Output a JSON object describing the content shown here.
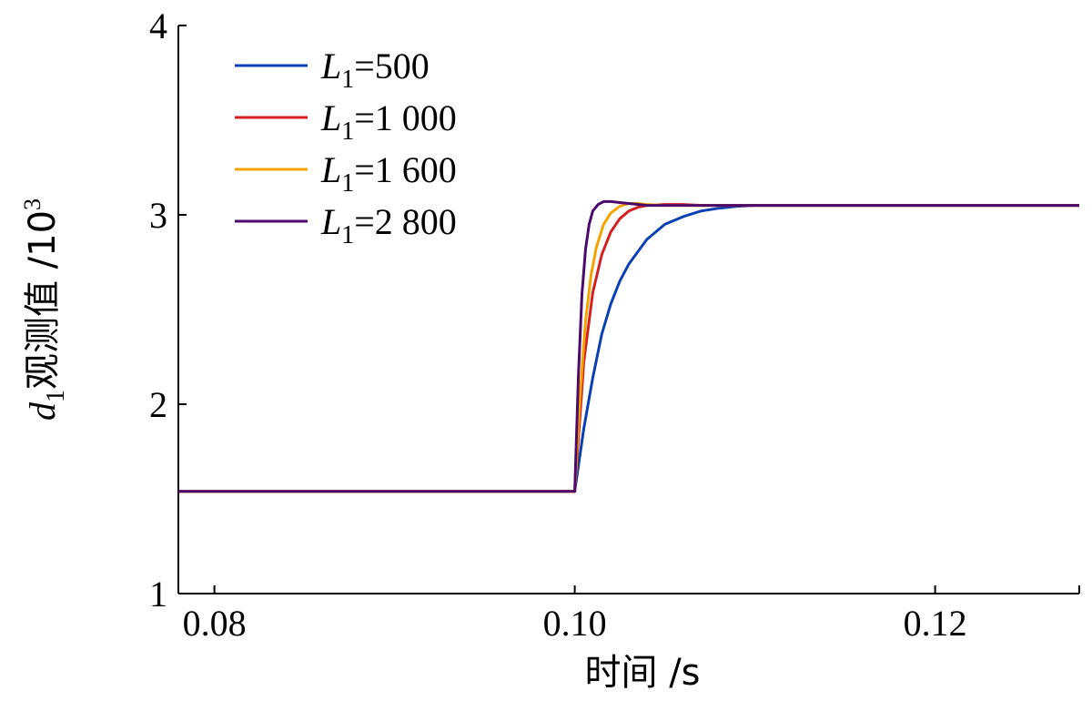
{
  "chart_data": {
    "type": "line",
    "xlabel": "时间 /s",
    "ylabel": {
      "var": "d",
      "sub": "1",
      "rest": "观测值 /10",
      "sup": "3"
    },
    "xlim": [
      0.078,
      0.128
    ],
    "ylim": [
      1,
      4
    ],
    "xticks": [
      0.08,
      0.1,
      0.12
    ],
    "xtick_labels": [
      "0.08",
      "0.10",
      "0.12"
    ],
    "yticks": [
      1,
      2,
      3,
      4
    ],
    "ytick_labels": [
      "1",
      "2",
      "3",
      "4"
    ],
    "grid": false,
    "legend_position": "top-left",
    "series": [
      {
        "name": "L1=500",
        "legend": {
          "var": "L",
          "sub": "1",
          "rest": "=500"
        },
        "color": "#0a3fb5",
        "x": [
          0.078,
          0.0999,
          0.1,
          0.1005,
          0.101,
          0.1015,
          0.102,
          0.1025,
          0.103,
          0.104,
          0.105,
          0.106,
          0.107,
          0.108,
          0.109,
          0.11,
          0.112,
          0.128
        ],
        "y": [
          1.54,
          1.54,
          1.54,
          1.87,
          2.14,
          2.37,
          2.53,
          2.65,
          2.74,
          2.87,
          2.95,
          2.99,
          3.02,
          3.035,
          3.045,
          3.05,
          3.05,
          3.05
        ]
      },
      {
        "name": "L1=1 000",
        "legend": {
          "var": "L",
          "sub": "1",
          "rest": "=1 000"
        },
        "color": "#d42020",
        "x": [
          0.078,
          0.0999,
          0.1,
          0.1005,
          0.101,
          0.1015,
          0.102,
          0.1025,
          0.103,
          0.1035,
          0.104,
          0.105,
          0.106,
          0.107,
          0.128
        ],
        "y": [
          1.54,
          1.54,
          1.54,
          2.22,
          2.59,
          2.79,
          2.91,
          2.98,
          3.02,
          3.04,
          3.05,
          3.055,
          3.055,
          3.05,
          3.05
        ]
      },
      {
        "name": "L1=1 600",
        "legend": {
          "var": "L",
          "sub": "1",
          "rest": "=1 600"
        },
        "color": "#f5a300",
        "x": [
          0.078,
          0.0999,
          0.1,
          0.1003,
          0.1006,
          0.1009,
          0.1012,
          0.1016,
          0.102,
          0.1025,
          0.103,
          0.1035,
          0.104,
          0.105,
          0.128
        ],
        "y": [
          1.54,
          1.54,
          1.54,
          2.05,
          2.44,
          2.68,
          2.83,
          2.95,
          3.01,
          3.045,
          3.06,
          3.06,
          3.055,
          3.05,
          3.05
        ]
      },
      {
        "name": "L1=2 800",
        "legend": {
          "var": "L",
          "sub": "1",
          "rest": "=2 800"
        },
        "color": "#4b0a6b",
        "x": [
          0.078,
          0.0999,
          0.1,
          0.1002,
          0.1004,
          0.1006,
          0.1008,
          0.101,
          0.1013,
          0.1016,
          0.102,
          0.1025,
          0.103,
          0.104,
          0.128
        ],
        "y": [
          1.54,
          1.54,
          1.54,
          2.15,
          2.58,
          2.82,
          2.95,
          3.02,
          3.055,
          3.07,
          3.07,
          3.065,
          3.06,
          3.05,
          3.05
        ]
      }
    ]
  }
}
